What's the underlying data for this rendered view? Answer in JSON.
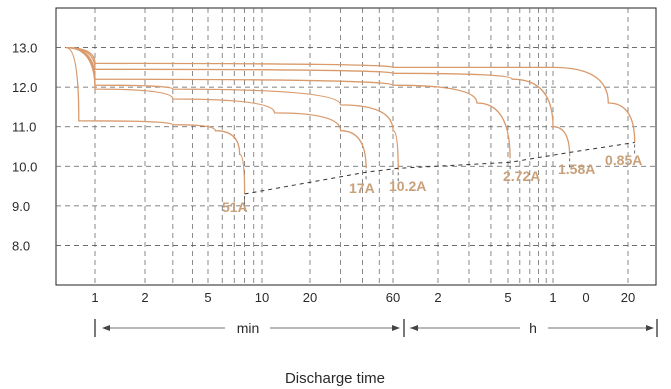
{
  "chart_data": {
    "type": "line",
    "title": "",
    "xlabel": "Discharge time",
    "ylabel": "",
    "ylim": [
      7,
      14
    ],
    "y_ticks": [
      "8.0",
      "9.0",
      "10.0",
      "11.0",
      "12.0",
      "13.0"
    ],
    "x_ticks": [
      {
        "label": "1",
        "min": 1
      },
      {
        "label": "2",
        "min": 2
      },
      {
        "label": "5",
        "min": 5
      },
      {
        "label": "10",
        "min": 10
      },
      {
        "label": "20",
        "min": 20
      },
      {
        "label": "60",
        "min": 60
      },
      {
        "label": "2",
        "min": 120
      },
      {
        "label": "5",
        "min": 300
      },
      {
        "label": "1",
        "min": 600
      },
      {
        "label": "0",
        "min": 1200
      },
      {
        "label": "20",
        "min": 1200
      }
    ],
    "range_labels": {
      "minutes": "min",
      "hours": "h"
    },
    "grid": true,
    "series": [
      {
        "name": "51A",
        "points": [
          [
            0.6,
            13.0
          ],
          [
            0.75,
            11.15
          ],
          [
            3,
            11.05
          ],
          [
            5.5,
            10.9
          ],
          [
            7.5,
            10.3
          ],
          [
            8,
            9.3
          ]
        ]
      },
      {
        "name": "17A",
        "points": [
          [
            0.6,
            13.0
          ],
          [
            1,
            11.95
          ],
          [
            3,
            11.7
          ],
          [
            12,
            11.35
          ],
          [
            30,
            10.9
          ],
          [
            42,
            9.95
          ]
        ]
      },
      {
        "name": "10.2A",
        "points": [
          [
            0.6,
            13.0
          ],
          [
            1,
            12.05
          ],
          [
            3,
            11.95
          ],
          [
            30,
            11.55
          ],
          [
            60,
            10.9
          ],
          [
            65,
            9.9
          ]
        ]
      },
      {
        "name": "2.72A",
        "points": [
          [
            0.6,
            13.0
          ],
          [
            1,
            12.2
          ],
          [
            60,
            12.05
          ],
          [
            200,
            11.6
          ],
          [
            310,
            10.2
          ]
        ]
      },
      {
        "name": "1.58A",
        "points": [
          [
            0.6,
            13.0
          ],
          [
            1,
            12.45
          ],
          [
            60,
            12.35
          ],
          [
            320,
            12.2
          ],
          [
            600,
            11.0
          ],
          [
            700,
            10.25
          ]
        ]
      },
      {
        "name": "0.85A",
        "points": [
          [
            0.6,
            13.0
          ],
          [
            1,
            12.6
          ],
          [
            60,
            12.5
          ],
          [
            600,
            12.5
          ],
          [
            1000,
            11.6
          ],
          [
            1250,
            10.6
          ]
        ]
      }
    ],
    "cutoff_line": [
      [
        8,
        9.3
      ],
      [
        42,
        9.85
      ],
      [
        65,
        9.95
      ],
      [
        310,
        10.1
      ],
      [
        700,
        10.35
      ],
      [
        1250,
        10.6
      ]
    ],
    "labels": [
      "51A",
      "17A",
      "10.2A",
      "2.72A",
      "1.58A",
      "0.85A"
    ],
    "colors": {
      "curve": "#d99a6c",
      "label": "#c8a07a",
      "grid": "#5a5a5a",
      "frame": "#222222"
    }
  }
}
